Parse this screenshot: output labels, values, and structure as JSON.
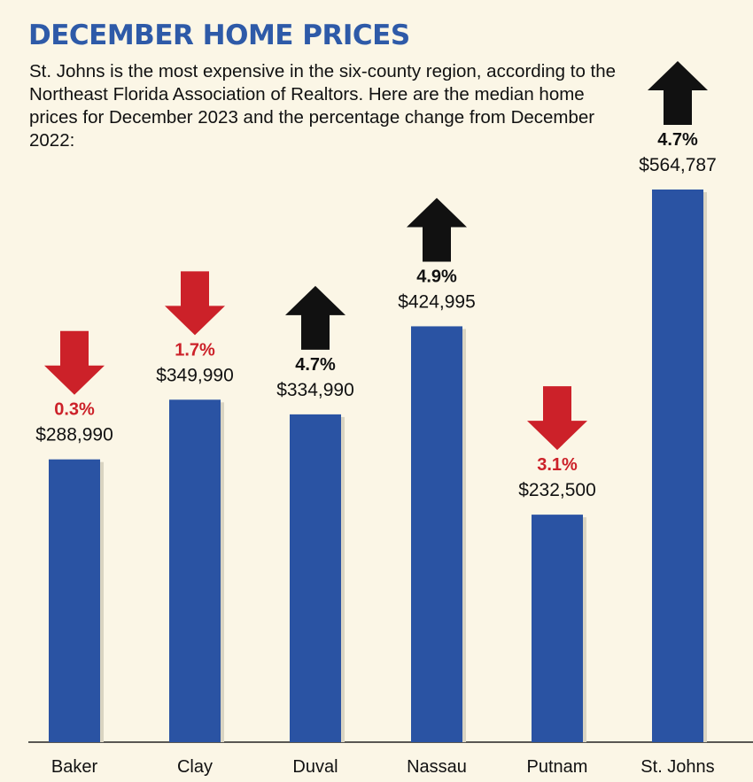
{
  "title": "DECEMBER HOME PRICES",
  "subtitle": "St. Johns is the most expensive in the six-county region, according to the Northeast Florida Association of Realtors. Here are the median home prices for December 2023 and the percentage change from December 2022:",
  "colors": {
    "background": "#fbf6e6",
    "title": "#2e5aa8",
    "bar": "#2a53a3",
    "up": "#111111",
    "down": "#cc2129"
  },
  "chart_data": {
    "type": "bar",
    "title": "DECEMBER HOME PRICES",
    "xlabel": "",
    "ylabel": "",
    "ylim": [
      0,
      564787
    ],
    "grid": false,
    "categories": [
      "Baker",
      "Clay",
      "Duval",
      "Nassau",
      "Putnam",
      "St. Johns"
    ],
    "values": [
      288990,
      349990,
      334990,
      424995,
      232500,
      564787
    ],
    "value_labels": [
      "$288,990",
      "$349,990",
      "$334,990",
      "$424,995",
      "$232,500",
      "$564,787"
    ],
    "change_labels": [
      "0.3%",
      "1.7%",
      "4.7%",
      "4.9%",
      "3.1%",
      "4.7%"
    ],
    "change_direction": [
      "down",
      "down",
      "up",
      "up",
      "down",
      "up"
    ]
  }
}
